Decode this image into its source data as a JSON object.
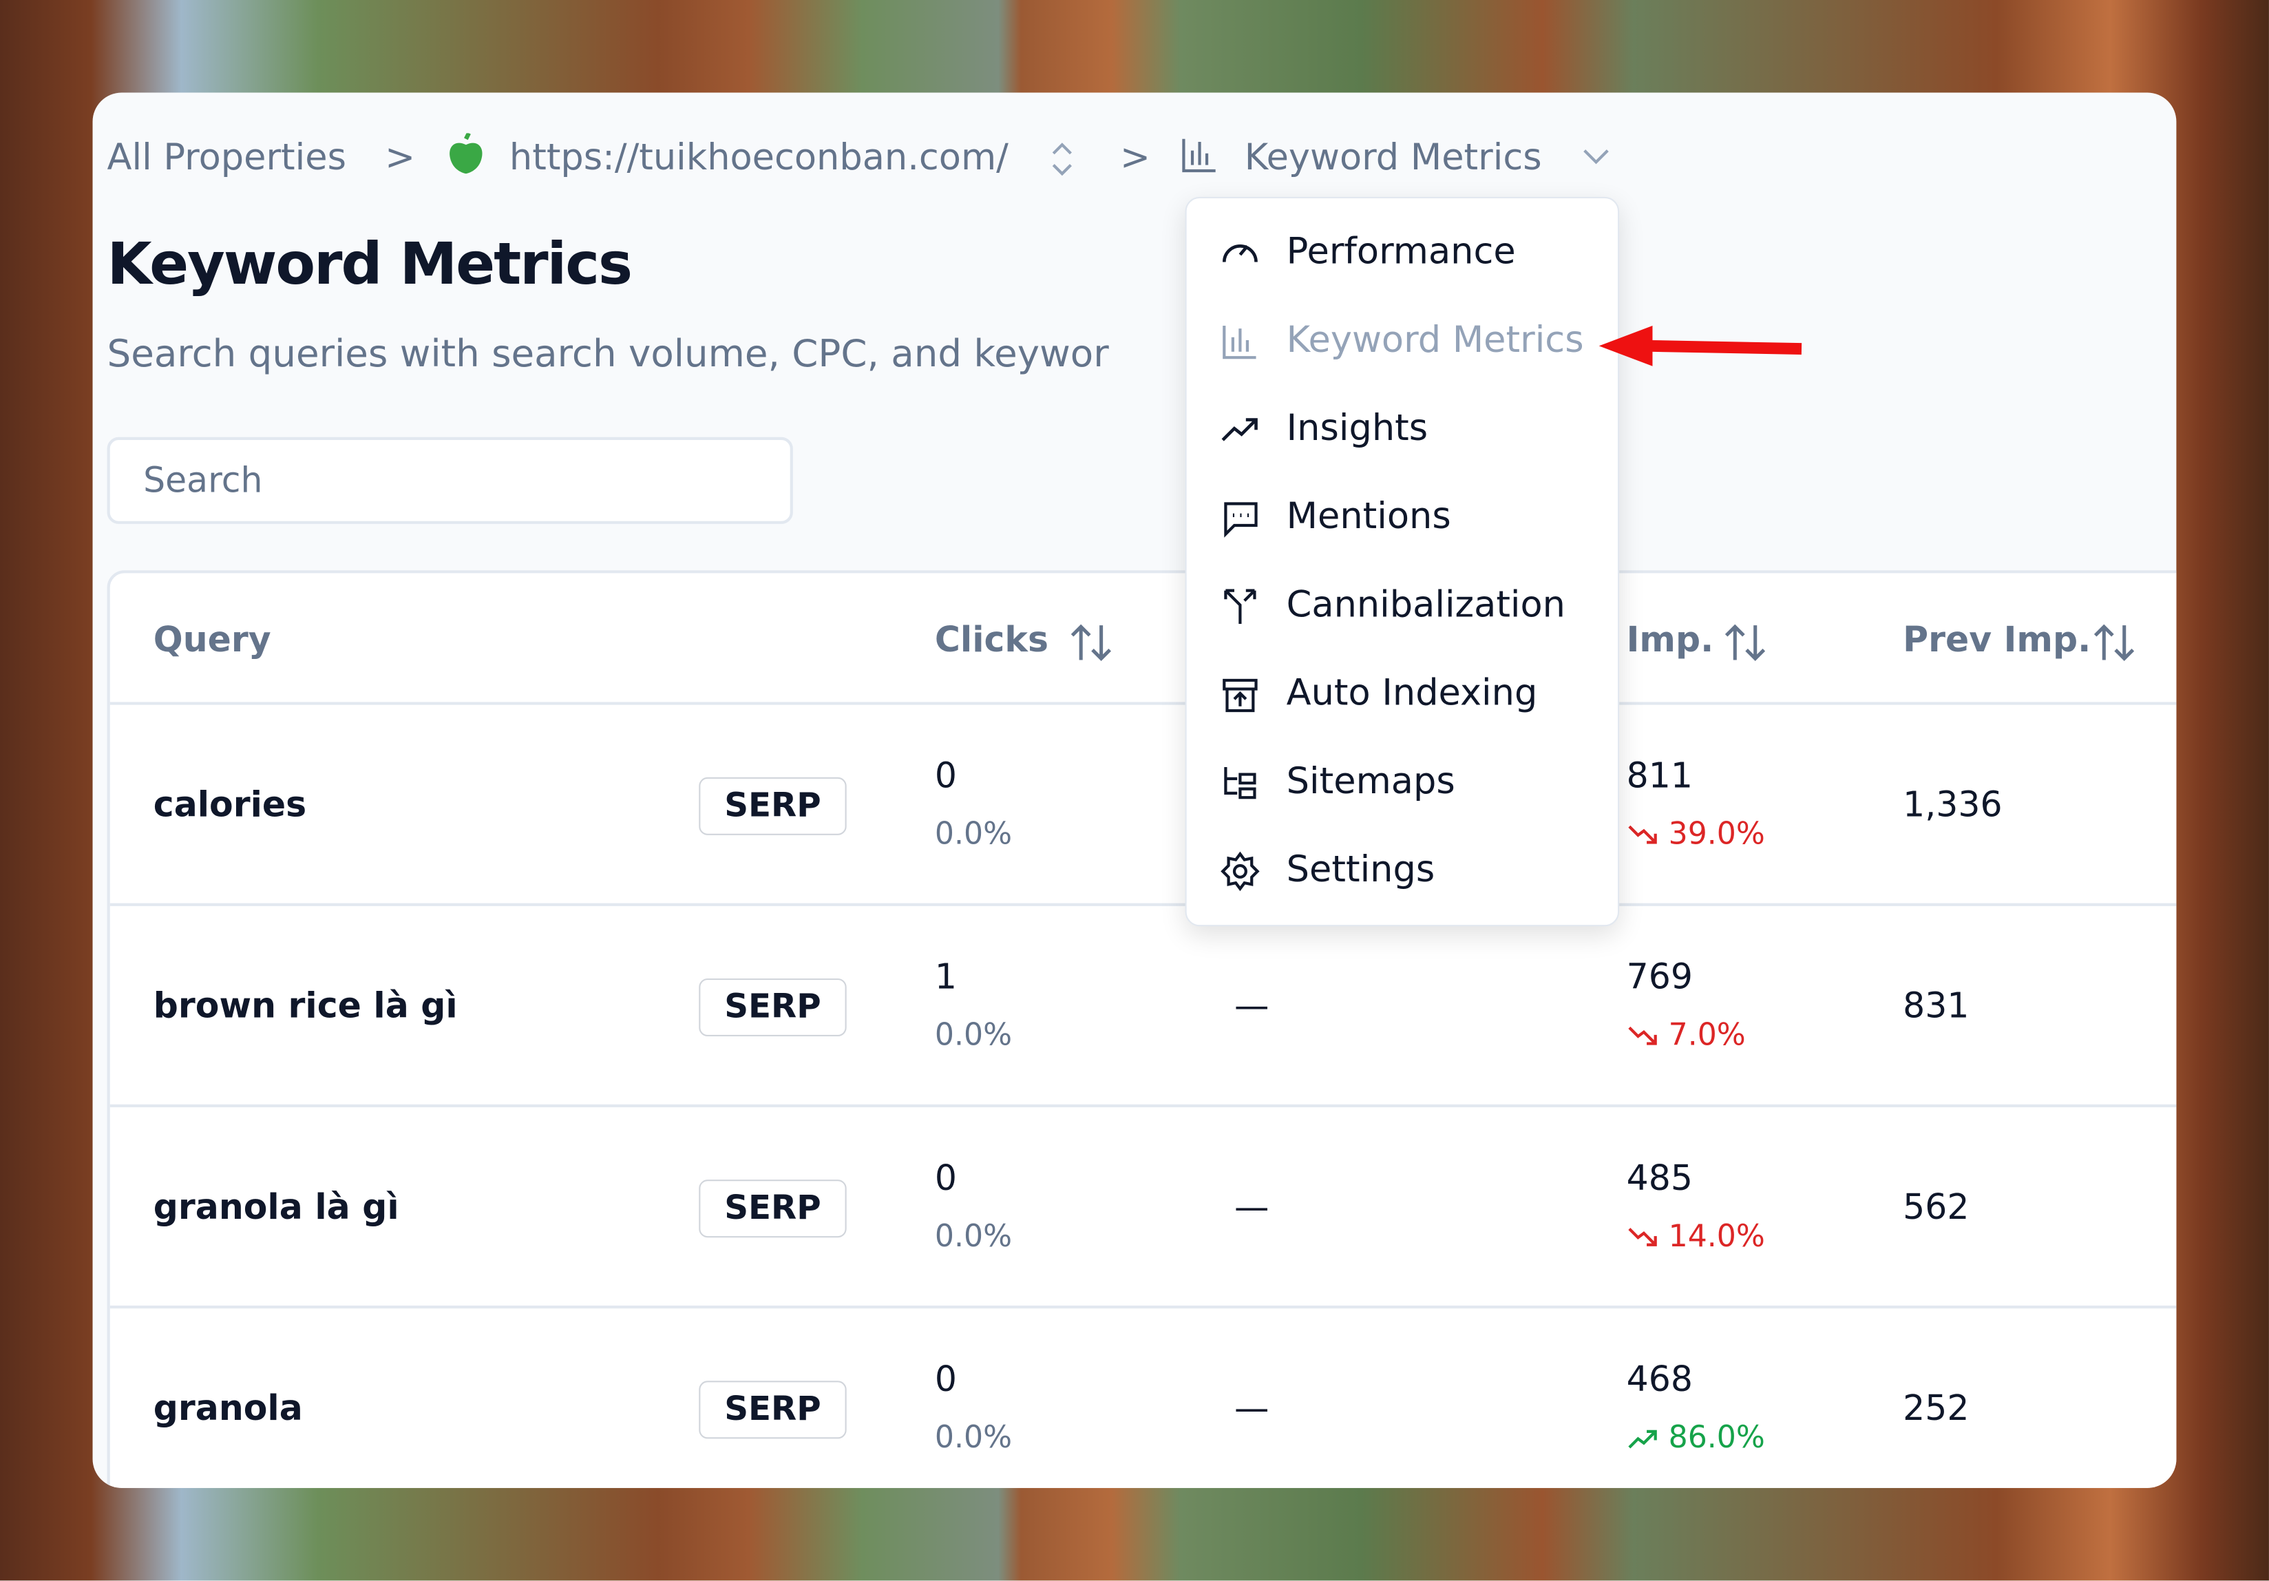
{
  "breadcrumb": {
    "root": "All Properties",
    "property": "https://tuikhoeconban.com/",
    "current": "Keyword Metrics"
  },
  "header": {
    "title": "Keyword Metrics",
    "subtitle": "Search queries with search volume, CPC, and keywor"
  },
  "search": {
    "placeholder": "Search"
  },
  "table": {
    "columns": [
      "Query",
      "Clicks",
      "Imp.",
      "Prev Imp."
    ],
    "button": "SERP",
    "rows": [
      {
        "query": "calories",
        "clicks": "0",
        "ctr": "0.0%",
        "imp": "811",
        "change": "39.0%",
        "trend": "down",
        "prev": "1,336"
      },
      {
        "query": "brown rice là gì",
        "clicks": "1",
        "ctr": "0.0%",
        "position": "—",
        "imp": "769",
        "change": "7.0%",
        "trend": "down",
        "prev": "831"
      },
      {
        "query": "granola là gì",
        "clicks": "0",
        "ctr": "0.0%",
        "position": "—",
        "imp": "485",
        "change": "14.0%",
        "trend": "down",
        "prev": "562"
      },
      {
        "query": "granola",
        "clicks": "0",
        "ctr": "0.0%",
        "position": "—",
        "imp": "468",
        "change": "86.0%",
        "trend": "up",
        "prev": "252"
      }
    ]
  },
  "menu": {
    "active": 1,
    "items": [
      "Performance",
      "Keyword Metrics",
      "Insights",
      "Mentions",
      "Cannibalization",
      "Auto Indexing",
      "Sitemaps",
      "Settings"
    ]
  }
}
